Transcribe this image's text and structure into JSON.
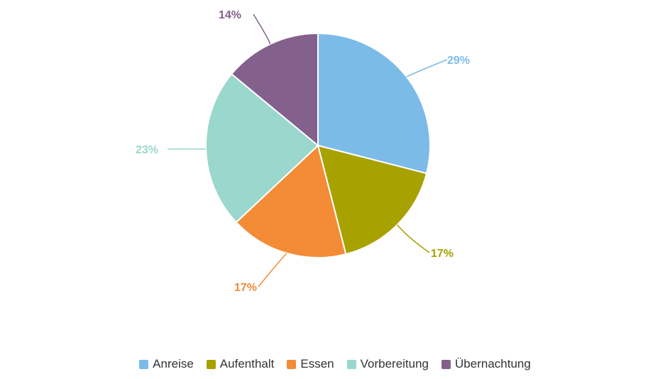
{
  "chart_data": {
    "type": "pie",
    "title": "",
    "series": [
      {
        "values": [
          {
            "name": "Anreise",
            "value": 29,
            "label": "29%",
            "color": "#7cbbe8"
          },
          {
            "name": "Aufenthalt",
            "value": 17,
            "label": "17%",
            "color": "#a8a200"
          },
          {
            "name": "Essen",
            "value": 17,
            "label": "17%",
            "color": "#f38b37"
          },
          {
            "name": "Vorbereitung",
            "value": 23,
            "label": "23%",
            "color": "#9ad7cc"
          },
          {
            "name": "Übernachtung",
            "value": 14,
            "label": "14%",
            "color": "#84608c"
          }
        ]
      }
    ],
    "legend": {
      "position": "bottom",
      "items": [
        "Anreise",
        "Aufenthalt",
        "Essen",
        "Vorbereitung",
        "Übernachtung"
      ]
    },
    "start_angle_deg": 0,
    "direction": "clockwise",
    "background": "#ffffff"
  }
}
